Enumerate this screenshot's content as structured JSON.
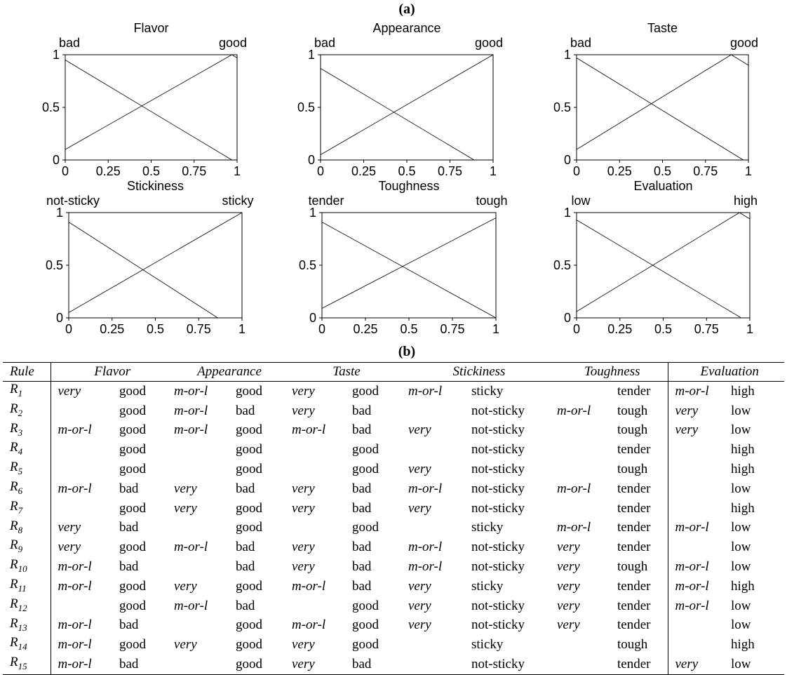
{
  "labels": {
    "a": "(a)",
    "b": "(b)"
  },
  "chart_data": [
    {
      "type": "line",
      "title": "Flavor",
      "xlim": [
        0,
        1
      ],
      "ylim": [
        0,
        1
      ],
      "xticks": [
        "0",
        "0.25",
        "0.5",
        "0.75",
        "1"
      ],
      "yticks": [
        "0",
        "0.5",
        "1"
      ],
      "term_low": "bad",
      "term_high": "good",
      "series": [
        {
          "name": "bad",
          "x": [
            0,
            0.97
          ],
          "y": [
            0.95,
            0
          ]
        },
        {
          "name": "good",
          "x": [
            0,
            0.97,
            1
          ],
          "y": [
            0.1,
            1,
            0.97
          ]
        }
      ]
    },
    {
      "type": "line",
      "title": "Appearance",
      "xlim": [
        0,
        1
      ],
      "ylim": [
        0,
        1
      ],
      "xticks": [
        "0",
        "0.25",
        "0.5",
        "0.75",
        "1"
      ],
      "yticks": [
        "0",
        "0.5",
        "1"
      ],
      "term_low": "bad",
      "term_high": "good",
      "series": [
        {
          "name": "bad",
          "x": [
            0,
            0.89
          ],
          "y": [
            0.87,
            0
          ]
        },
        {
          "name": "good",
          "x": [
            0,
            1
          ],
          "y": [
            0.05,
            1
          ]
        }
      ]
    },
    {
      "type": "line",
      "title": "Taste",
      "xlim": [
        0,
        1
      ],
      "ylim": [
        0,
        1
      ],
      "xticks": [
        "0",
        "0.25",
        "0.5",
        "0.75",
        "1"
      ],
      "yticks": [
        "0",
        "0.5",
        "1"
      ],
      "term_low": "bad",
      "term_high": "good",
      "series": [
        {
          "name": "bad",
          "x": [
            0,
            0.97
          ],
          "y": [
            0.97,
            0
          ]
        },
        {
          "name": "good",
          "x": [
            0,
            0.9,
            1
          ],
          "y": [
            0.1,
            1,
            0.9
          ]
        }
      ]
    },
    {
      "type": "line",
      "title": "Stickiness",
      "xlim": [
        0,
        1
      ],
      "ylim": [
        0,
        1
      ],
      "xticks": [
        "0",
        "0.25",
        "0.5",
        "0.75",
        "1"
      ],
      "yticks": [
        "0",
        "0.5",
        "1"
      ],
      "term_low": "not-sticky",
      "term_high": "sticky",
      "series": [
        {
          "name": "not-sticky",
          "x": [
            0,
            0.86
          ],
          "y": [
            0.91,
            0
          ]
        },
        {
          "name": "sticky",
          "x": [
            0,
            1
          ],
          "y": [
            0.05,
            1
          ]
        }
      ]
    },
    {
      "type": "line",
      "title": "Toughness",
      "xlim": [
        0,
        1
      ],
      "ylim": [
        0,
        1
      ],
      "xticks": [
        "0",
        "0.25",
        "0.5",
        "0.75",
        "1"
      ],
      "yticks": [
        "0",
        "0.5",
        "1"
      ],
      "term_low": "tender",
      "term_high": "tough",
      "series": [
        {
          "name": "tender",
          "x": [
            0,
            1
          ],
          "y": [
            0.91,
            0
          ]
        },
        {
          "name": "tough",
          "x": [
            0,
            1
          ],
          "y": [
            0.09,
            0.95
          ]
        }
      ]
    },
    {
      "type": "line",
      "title": "Evaluation",
      "xlim": [
        0,
        1
      ],
      "ylim": [
        0,
        1
      ],
      "xticks": [
        "0",
        "0.25",
        "0.5",
        "0.75",
        "1"
      ],
      "yticks": [
        "0",
        "0.5",
        "1"
      ],
      "term_low": "low",
      "term_high": "high",
      "series": [
        {
          "name": "low",
          "x": [
            0,
            0.95
          ],
          "y": [
            0.93,
            0
          ]
        },
        {
          "name": "high",
          "x": [
            0,
            0.94,
            1
          ],
          "y": [
            0.06,
            1,
            0.94
          ]
        }
      ]
    }
  ],
  "table": {
    "headers": [
      "Rule",
      "Flavor",
      "Appearance",
      "Taste",
      "Stickiness",
      "Toughness",
      "Evaluation"
    ],
    "rows": [
      {
        "rule": "R",
        "sub": "1",
        "cells": [
          "very",
          "good",
          "m-or-l",
          "good",
          "very",
          "good",
          "m-or-l",
          "sticky",
          "",
          "tender",
          "m-or-l",
          "high"
        ]
      },
      {
        "rule": "R",
        "sub": "2",
        "cells": [
          "",
          "good",
          "m-or-l",
          "bad",
          "very",
          "bad",
          "",
          "not-sticky",
          "m-or-l",
          "tough",
          "very",
          "low"
        ]
      },
      {
        "rule": "R",
        "sub": "3",
        "cells": [
          "m-or-l",
          "good",
          "m-or-l",
          "good",
          "m-or-l",
          "bad",
          "very",
          "not-sticky",
          "",
          "tough",
          "very",
          "low"
        ]
      },
      {
        "rule": "R",
        "sub": "4",
        "cells": [
          "",
          "good",
          "",
          "good",
          "",
          "good",
          "",
          "not-sticky",
          "",
          "tender",
          "",
          "high"
        ]
      },
      {
        "rule": "R",
        "sub": "5",
        "cells": [
          "",
          "good",
          "",
          "good",
          "",
          "good",
          "very",
          "not-sticky",
          "",
          "tough",
          "",
          "high"
        ]
      },
      {
        "rule": "R",
        "sub": "6",
        "cells": [
          "m-or-l",
          "bad",
          "very",
          "bad",
          "very",
          "bad",
          "m-or-l",
          "not-sticky",
          "m-or-l",
          "tender",
          "",
          "low"
        ]
      },
      {
        "rule": "R",
        "sub": "7",
        "cells": [
          "",
          "good",
          "very",
          "good",
          "very",
          "bad",
          "very",
          "not-sticky",
          "",
          "tender",
          "",
          "high"
        ]
      },
      {
        "rule": "R",
        "sub": "8",
        "cells": [
          "very",
          "bad",
          "",
          "good",
          "",
          "good",
          "",
          "sticky",
          "m-or-l",
          "tender",
          "m-or-l",
          "low"
        ]
      },
      {
        "rule": "R",
        "sub": "9",
        "cells": [
          "very",
          "good",
          "m-or-l",
          "bad",
          "very",
          "bad",
          "m-or-l",
          "not-sticky",
          "very",
          "tender",
          "",
          "low"
        ]
      },
      {
        "rule": "R",
        "sub": "10",
        "cells": [
          "m-or-l",
          "bad",
          "",
          "bad",
          "very",
          "bad",
          "m-or-l",
          "not-sticky",
          "very",
          "tough",
          "m-or-l",
          "low"
        ]
      },
      {
        "rule": "R",
        "sub": "11",
        "cells": [
          "m-or-l",
          "good",
          "very",
          "good",
          "m-or-l",
          "bad",
          "very",
          "sticky",
          "very",
          "tender",
          "m-or-l",
          "high"
        ]
      },
      {
        "rule": "R",
        "sub": "12",
        "cells": [
          "",
          "good",
          "m-or-l",
          "bad",
          "",
          "good",
          "very",
          "not-sticky",
          "very",
          "tender",
          "m-or-l",
          "low"
        ]
      },
      {
        "rule": "R",
        "sub": "13",
        "cells": [
          "m-or-l",
          "bad",
          "",
          "good",
          "m-or-l",
          "good",
          "very",
          "not-sticky",
          "very",
          "tender",
          "",
          "low"
        ]
      },
      {
        "rule": "R",
        "sub": "14",
        "cells": [
          "m-or-l",
          "good",
          "very",
          "good",
          "very",
          "good",
          "",
          "sticky",
          "",
          "tough",
          "",
          "high"
        ]
      },
      {
        "rule": "R",
        "sub": "15",
        "cells": [
          "m-or-l",
          "bad",
          "",
          "good",
          "very",
          "bad",
          "",
          "not-sticky",
          "",
          "tender",
          "very",
          "low"
        ]
      }
    ]
  }
}
